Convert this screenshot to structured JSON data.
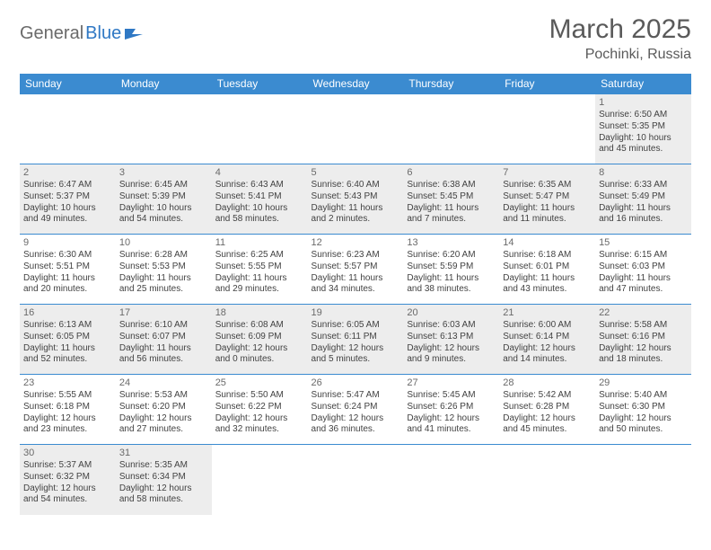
{
  "logo": {
    "word1": "General",
    "word2": "Blue"
  },
  "header": {
    "monthTitle": "March 2025",
    "location": "Pochinki, Russia"
  },
  "colors": {
    "headerBg": "#3b8bd0",
    "headerText": "#ffffff",
    "cellBorder": "#3b8bd0",
    "shadeBg": "#ededed",
    "bodyText": "#424242",
    "logoGray": "#6a6a6a",
    "logoBlue": "#2f78c4"
  },
  "weekdays": [
    "Sunday",
    "Monday",
    "Tuesday",
    "Wednesday",
    "Thursday",
    "Friday",
    "Saturday"
  ],
  "weeks": [
    [
      {
        "day": "",
        "lines": []
      },
      {
        "day": "",
        "lines": []
      },
      {
        "day": "",
        "lines": []
      },
      {
        "day": "",
        "lines": []
      },
      {
        "day": "",
        "lines": []
      },
      {
        "day": "",
        "lines": []
      },
      {
        "shade": true,
        "day": "1",
        "lines": [
          "Sunrise: 6:50 AM",
          "Sunset: 5:35 PM",
          "Daylight: 10 hours",
          "and 45 minutes."
        ]
      }
    ],
    [
      {
        "shade": true,
        "day": "2",
        "lines": [
          "Sunrise: 6:47 AM",
          "Sunset: 5:37 PM",
          "Daylight: 10 hours",
          "and 49 minutes."
        ]
      },
      {
        "shade": true,
        "day": "3",
        "lines": [
          "Sunrise: 6:45 AM",
          "Sunset: 5:39 PM",
          "Daylight: 10 hours",
          "and 54 minutes."
        ]
      },
      {
        "shade": true,
        "day": "4",
        "lines": [
          "Sunrise: 6:43 AM",
          "Sunset: 5:41 PM",
          "Daylight: 10 hours",
          "and 58 minutes."
        ]
      },
      {
        "shade": true,
        "day": "5",
        "lines": [
          "Sunrise: 6:40 AM",
          "Sunset: 5:43 PM",
          "Daylight: 11 hours",
          "and 2 minutes."
        ]
      },
      {
        "shade": true,
        "day": "6",
        "lines": [
          "Sunrise: 6:38 AM",
          "Sunset: 5:45 PM",
          "Daylight: 11 hours",
          "and 7 minutes."
        ]
      },
      {
        "shade": true,
        "day": "7",
        "lines": [
          "Sunrise: 6:35 AM",
          "Sunset: 5:47 PM",
          "Daylight: 11 hours",
          "and 11 minutes."
        ]
      },
      {
        "shade": true,
        "day": "8",
        "lines": [
          "Sunrise: 6:33 AM",
          "Sunset: 5:49 PM",
          "Daylight: 11 hours",
          "and 16 minutes."
        ]
      }
    ],
    [
      {
        "day": "9",
        "lines": [
          "Sunrise: 6:30 AM",
          "Sunset: 5:51 PM",
          "Daylight: 11 hours",
          "and 20 minutes."
        ]
      },
      {
        "day": "10",
        "lines": [
          "Sunrise: 6:28 AM",
          "Sunset: 5:53 PM",
          "Daylight: 11 hours",
          "and 25 minutes."
        ]
      },
      {
        "day": "11",
        "lines": [
          "Sunrise: 6:25 AM",
          "Sunset: 5:55 PM",
          "Daylight: 11 hours",
          "and 29 minutes."
        ]
      },
      {
        "day": "12",
        "lines": [
          "Sunrise: 6:23 AM",
          "Sunset: 5:57 PM",
          "Daylight: 11 hours",
          "and 34 minutes."
        ]
      },
      {
        "day": "13",
        "lines": [
          "Sunrise: 6:20 AM",
          "Sunset: 5:59 PM",
          "Daylight: 11 hours",
          "and 38 minutes."
        ]
      },
      {
        "day": "14",
        "lines": [
          "Sunrise: 6:18 AM",
          "Sunset: 6:01 PM",
          "Daylight: 11 hours",
          "and 43 minutes."
        ]
      },
      {
        "day": "15",
        "lines": [
          "Sunrise: 6:15 AM",
          "Sunset: 6:03 PM",
          "Daylight: 11 hours",
          "and 47 minutes."
        ]
      }
    ],
    [
      {
        "shade": true,
        "day": "16",
        "lines": [
          "Sunrise: 6:13 AM",
          "Sunset: 6:05 PM",
          "Daylight: 11 hours",
          "and 52 minutes."
        ]
      },
      {
        "shade": true,
        "day": "17",
        "lines": [
          "Sunrise: 6:10 AM",
          "Sunset: 6:07 PM",
          "Daylight: 11 hours",
          "and 56 minutes."
        ]
      },
      {
        "shade": true,
        "day": "18",
        "lines": [
          "Sunrise: 6:08 AM",
          "Sunset: 6:09 PM",
          "Daylight: 12 hours",
          "and 0 minutes."
        ]
      },
      {
        "shade": true,
        "day": "19",
        "lines": [
          "Sunrise: 6:05 AM",
          "Sunset: 6:11 PM",
          "Daylight: 12 hours",
          "and 5 minutes."
        ]
      },
      {
        "shade": true,
        "day": "20",
        "lines": [
          "Sunrise: 6:03 AM",
          "Sunset: 6:13 PM",
          "Daylight: 12 hours",
          "and 9 minutes."
        ]
      },
      {
        "shade": true,
        "day": "21",
        "lines": [
          "Sunrise: 6:00 AM",
          "Sunset: 6:14 PM",
          "Daylight: 12 hours",
          "and 14 minutes."
        ]
      },
      {
        "shade": true,
        "day": "22",
        "lines": [
          "Sunrise: 5:58 AM",
          "Sunset: 6:16 PM",
          "Daylight: 12 hours",
          "and 18 minutes."
        ]
      }
    ],
    [
      {
        "day": "23",
        "lines": [
          "Sunrise: 5:55 AM",
          "Sunset: 6:18 PM",
          "Daylight: 12 hours",
          "and 23 minutes."
        ]
      },
      {
        "day": "24",
        "lines": [
          "Sunrise: 5:53 AM",
          "Sunset: 6:20 PM",
          "Daylight: 12 hours",
          "and 27 minutes."
        ]
      },
      {
        "day": "25",
        "lines": [
          "Sunrise: 5:50 AM",
          "Sunset: 6:22 PM",
          "Daylight: 12 hours",
          "and 32 minutes."
        ]
      },
      {
        "day": "26",
        "lines": [
          "Sunrise: 5:47 AM",
          "Sunset: 6:24 PM",
          "Daylight: 12 hours",
          "and 36 minutes."
        ]
      },
      {
        "day": "27",
        "lines": [
          "Sunrise: 5:45 AM",
          "Sunset: 6:26 PM",
          "Daylight: 12 hours",
          "and 41 minutes."
        ]
      },
      {
        "day": "28",
        "lines": [
          "Sunrise: 5:42 AM",
          "Sunset: 6:28 PM",
          "Daylight: 12 hours",
          "and 45 minutes."
        ]
      },
      {
        "day": "29",
        "lines": [
          "Sunrise: 5:40 AM",
          "Sunset: 6:30 PM",
          "Daylight: 12 hours",
          "and 50 minutes."
        ]
      }
    ],
    [
      {
        "shade": true,
        "day": "30",
        "lines": [
          "Sunrise: 5:37 AM",
          "Sunset: 6:32 PM",
          "Daylight: 12 hours",
          "and 54 minutes."
        ]
      },
      {
        "shade": true,
        "day": "31",
        "lines": [
          "Sunrise: 5:35 AM",
          "Sunset: 6:34 PM",
          "Daylight: 12 hours",
          "and 58 minutes."
        ]
      },
      {
        "day": "",
        "lines": []
      },
      {
        "day": "",
        "lines": []
      },
      {
        "day": "",
        "lines": []
      },
      {
        "day": "",
        "lines": []
      },
      {
        "day": "",
        "lines": []
      }
    ]
  ]
}
